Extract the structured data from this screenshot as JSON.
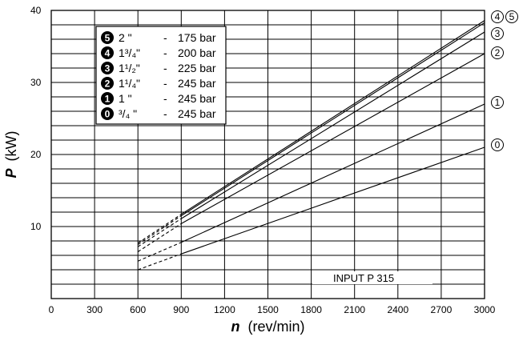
{
  "chart_data": {
    "type": "line",
    "xlabel_symbol": "n",
    "xlabel_unit": "(rev/min)",
    "ylabel_symbol": "P",
    "ylabel_unit": "(kW)",
    "xlim": [
      0,
      3000
    ],
    "ylim": [
      0,
      40
    ],
    "x_ticks": [
      "0",
      "300",
      "600",
      "900",
      "1200",
      "1500",
      "1800",
      "2100",
      "2400",
      "2700",
      "3000"
    ],
    "y_ticks": [
      "10",
      "20",
      "30",
      "40"
    ],
    "grid": true,
    "legend_position": "top-left",
    "legend": [
      {
        "badge": "5",
        "size": "2 \"",
        "sep": "-",
        "pressure": "175 bar"
      },
      {
        "badge": "4",
        "size": "1³/₄\"",
        "sep": "-",
        "pressure": "200 bar"
      },
      {
        "badge": "3",
        "size": "1¹/₂\"",
        "sep": "-",
        "pressure": "225 bar"
      },
      {
        "badge": "2",
        "size": "1¹/₄\"",
        "sep": "-",
        "pressure": "245 bar"
      },
      {
        "badge": "1",
        "size": "1  \"",
        "sep": "-",
        "pressure": "245 bar"
      },
      {
        "badge": "0",
        "size": "³/₄ \"",
        "sep": "-",
        "pressure": "245 bar"
      }
    ],
    "annotation": "INPUT  P 315",
    "series": [
      {
        "tag": "0",
        "dashed_x": [
          600,
          900
        ],
        "dashed_y": [
          4,
          6.2
        ],
        "solid_x": [
          900,
          3000
        ],
        "solid_y": [
          6.2,
          21
        ]
      },
      {
        "tag": "1",
        "dashed_x": [
          600,
          900
        ],
        "dashed_y": [
          5.2,
          7.8
        ],
        "solid_x": [
          900,
          3000
        ],
        "solid_y": [
          7.8,
          27
        ]
      },
      {
        "tag": "2",
        "dashed_x": [
          600,
          900
        ],
        "dashed_y": [
          6.5,
          10.4
        ],
        "solid_x": [
          900,
          3000
        ],
        "solid_y": [
          10.4,
          34
        ]
      },
      {
        "tag": "3",
        "dashed_x": [
          600,
          900
        ],
        "dashed_y": [
          7.2,
          11.1
        ],
        "solid_x": [
          900,
          3000
        ],
        "solid_y": [
          11.1,
          37
        ]
      },
      {
        "tag": "4",
        "dashed_x": [
          600,
          900
        ],
        "dashed_y": [
          7.5,
          11.5
        ],
        "solid_x": [
          900,
          3000
        ],
        "solid_y": [
          11.5,
          38.3
        ]
      },
      {
        "tag": "5",
        "dashed_x": [
          600,
          900
        ],
        "dashed_y": [
          7.7,
          11.7
        ],
        "solid_x": [
          900,
          3000
        ],
        "solid_y": [
          11.7,
          38.6
        ]
      }
    ],
    "end_tags": [
      "4",
      "5",
      "3",
      "2",
      "1",
      "0"
    ]
  }
}
